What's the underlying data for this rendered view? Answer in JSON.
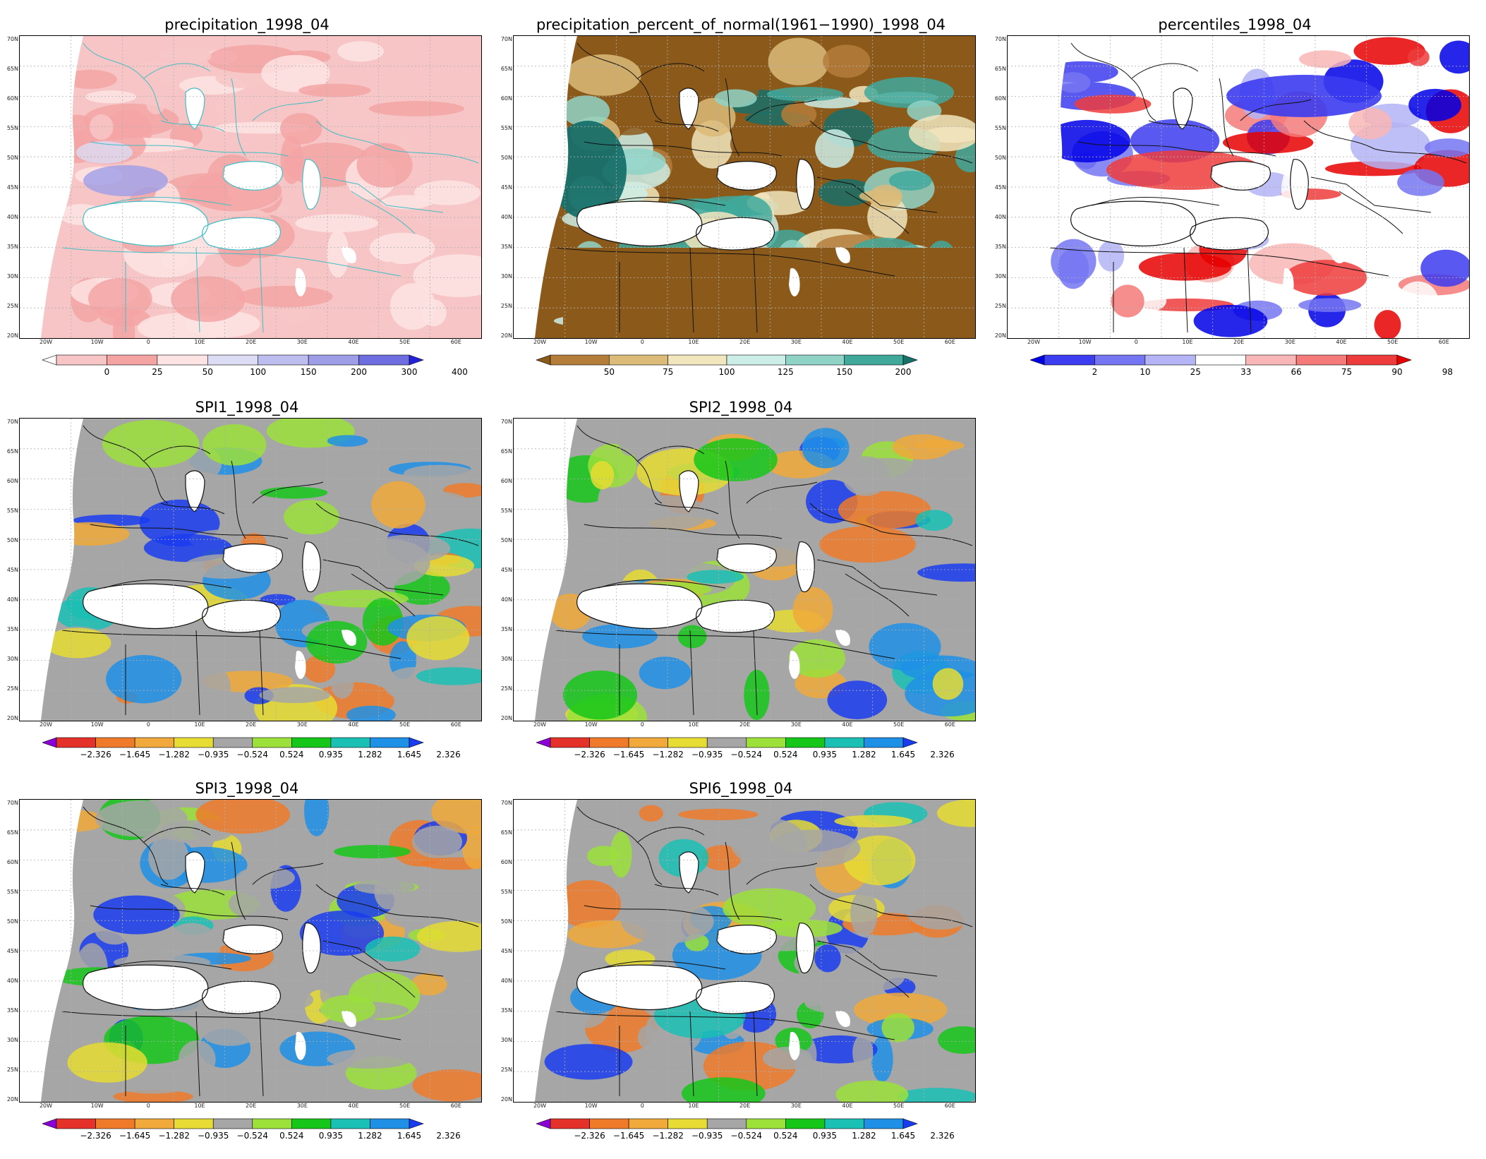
{
  "lat_labels": [
    "70N",
    "65N",
    "60N",
    "55N",
    "50N",
    "45N",
    "40N",
    "35N",
    "30N",
    "25N",
    "20N"
  ],
  "lon_labels": [
    "20W",
    "10W",
    "0",
    "10E",
    "20E",
    "30E",
    "40E",
    "50E",
    "60E"
  ],
  "panels": [
    {
      "id": "precip",
      "title": "precipitation_1998_04",
      "scheme": "precip",
      "colors": [
        "#fcfcfc",
        "#f7c5c5",
        "#f5a4a4",
        "#fde3e3",
        "#dcdcf5",
        "#bdbdf0",
        "#9d9de8",
        "#6e6ee0",
        "#2222d8"
      ],
      "ticks": [
        "0",
        "25",
        "50",
        "100",
        "150",
        "200",
        "300",
        "400"
      ]
    },
    {
      "id": "pct",
      "title": "precipitation_percent_of_normal(1961−1990)_1998_04",
      "scheme": "pct",
      "colors": [
        "#8b5a1b",
        "#b47d3a",
        "#dcbb78",
        "#f2e6be",
        "#cdeee6",
        "#8fd3c7",
        "#40a99c",
        "#17706a"
      ],
      "ticks": [
        "50",
        "75",
        "100",
        "125",
        "150",
        "200"
      ]
    },
    {
      "id": "pctl",
      "title": "percentiles_1998_04",
      "scheme": "pctl",
      "colors": [
        "#0000e6",
        "#3c3cf0",
        "#7676f2",
        "#b4b4f6",
        "#ffffff",
        "#f9b6b6",
        "#f57a7a",
        "#ee3c3c",
        "#e60000"
      ],
      "ticks": [
        "2",
        "10",
        "25",
        "33",
        "66",
        "75",
        "90",
        "98"
      ]
    },
    {
      "id": "spi1",
      "title": "SPI1_1998_04",
      "scheme": "spi",
      "colors": [
        "#8a00d6",
        "#e4322b",
        "#ef7a2a",
        "#f0a93a",
        "#e6dc33",
        "#a6a6a6",
        "#9be13a",
        "#16c71a",
        "#1ac0b4",
        "#1e90e6",
        "#1a3cf0"
      ],
      "ticks": [
        "−2.326",
        "−1.645",
        "−1.282",
        "−0.935",
        "−0.524",
        "0.524",
        "0.935",
        "1.282",
        "1.645",
        "2.326"
      ]
    },
    {
      "id": "spi2",
      "title": "SPI2_1998_04",
      "scheme": "spi",
      "colors": [
        "#8a00d6",
        "#e4322b",
        "#ef7a2a",
        "#f0a93a",
        "#e6dc33",
        "#a6a6a6",
        "#9be13a",
        "#16c71a",
        "#1ac0b4",
        "#1e90e6",
        "#1a3cf0"
      ],
      "ticks": [
        "−2.326",
        "−1.645",
        "−1.282",
        "−0.935",
        "−0.524",
        "0.524",
        "0.935",
        "1.282",
        "1.645",
        "2.326"
      ]
    },
    {
      "id": "spi3",
      "title": "SPI3_1998_04",
      "scheme": "spi",
      "colors": [
        "#8a00d6",
        "#e4322b",
        "#ef7a2a",
        "#f0a93a",
        "#e6dc33",
        "#a6a6a6",
        "#9be13a",
        "#16c71a",
        "#1ac0b4",
        "#1e90e6",
        "#1a3cf0"
      ],
      "ticks": [
        "−2.326",
        "−1.645",
        "−1.282",
        "−0.935",
        "−0.524",
        "0.524",
        "0.935",
        "1.282",
        "1.645",
        "2.326"
      ]
    },
    {
      "id": "spi6",
      "title": "SPI6_1998_04",
      "scheme": "spi",
      "colors": [
        "#8a00d6",
        "#e4322b",
        "#ef7a2a",
        "#f0a93a",
        "#e6dc33",
        "#a6a6a6",
        "#9be13a",
        "#16c71a",
        "#1ac0b4",
        "#1e90e6",
        "#1a3cf0"
      ],
      "ticks": [
        "−2.326",
        "−1.645",
        "−1.282",
        "−0.935",
        "−0.524",
        "0.524",
        "0.935",
        "1.282",
        "1.645",
        "2.326"
      ]
    }
  ]
}
